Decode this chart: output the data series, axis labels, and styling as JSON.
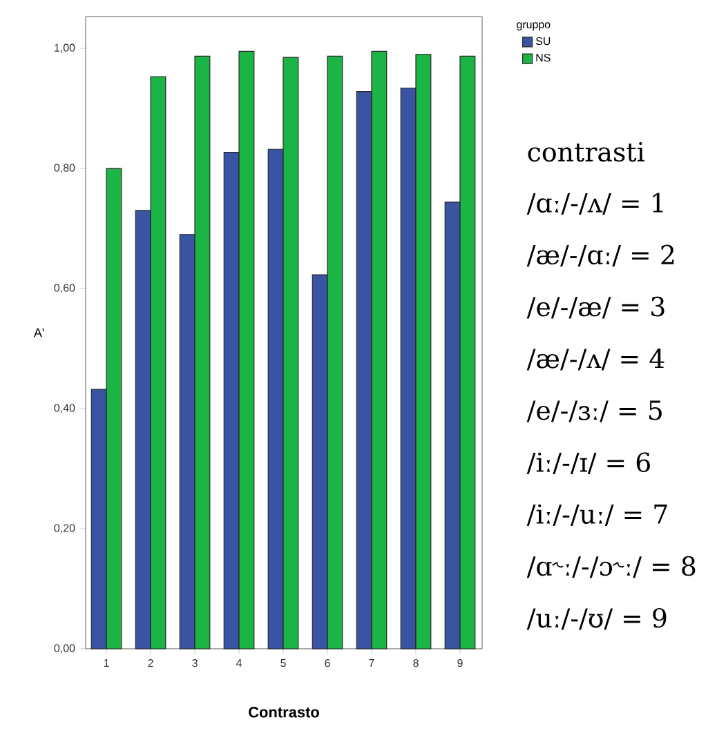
{
  "chart_data": {
    "type": "bar",
    "xlabel": "Contrasto",
    "ylabel": "A'",
    "legend_title": "gruppo",
    "legend": "top right",
    "grid": false,
    "categories": [
      "1",
      "2",
      "3",
      "4",
      "5",
      "6",
      "7",
      "8",
      "9"
    ],
    "ylim": [
      0,
      1.053
    ],
    "yticks": [
      {
        "value": 0,
        "label": "0,00"
      },
      {
        "value": 0.2,
        "label": "0,20"
      },
      {
        "value": 0.4,
        "label": "0,40"
      },
      {
        "value": 0.6,
        "label": "0,60"
      },
      {
        "value": 0.8,
        "label": "0,80"
      },
      {
        "value": 1,
        "label": "1,00"
      }
    ],
    "series": [
      {
        "name": "SU",
        "color": "#3a54a4",
        "values": [
          0.432,
          0.73,
          0.69,
          0.827,
          0.832,
          0.623,
          0.928,
          0.934,
          0.744
        ]
      },
      {
        "name": "NS",
        "color": "#1bb545",
        "values": [
          0.8,
          0.953,
          0.987,
          0.995,
          0.985,
          0.987,
          0.995,
          0.99,
          0.987
        ]
      }
    ],
    "annotations": [
      "contrasti",
      "/ɑː/-/ʌ/ = 1",
      "/æ/-/ɑː/ = 2",
      "/e/-/æ/ = 3",
      "/æ/-/ʌ/ = 4",
      "/e/-/ɜː/ = 5",
      "/iː/-/ɪ/ = 6",
      "/iː/-/uː/ = 7",
      "/ɑ˞ː/-/ɔ˞ː/ = 8",
      "/uː/-/ʊ/ = 9"
    ]
  }
}
